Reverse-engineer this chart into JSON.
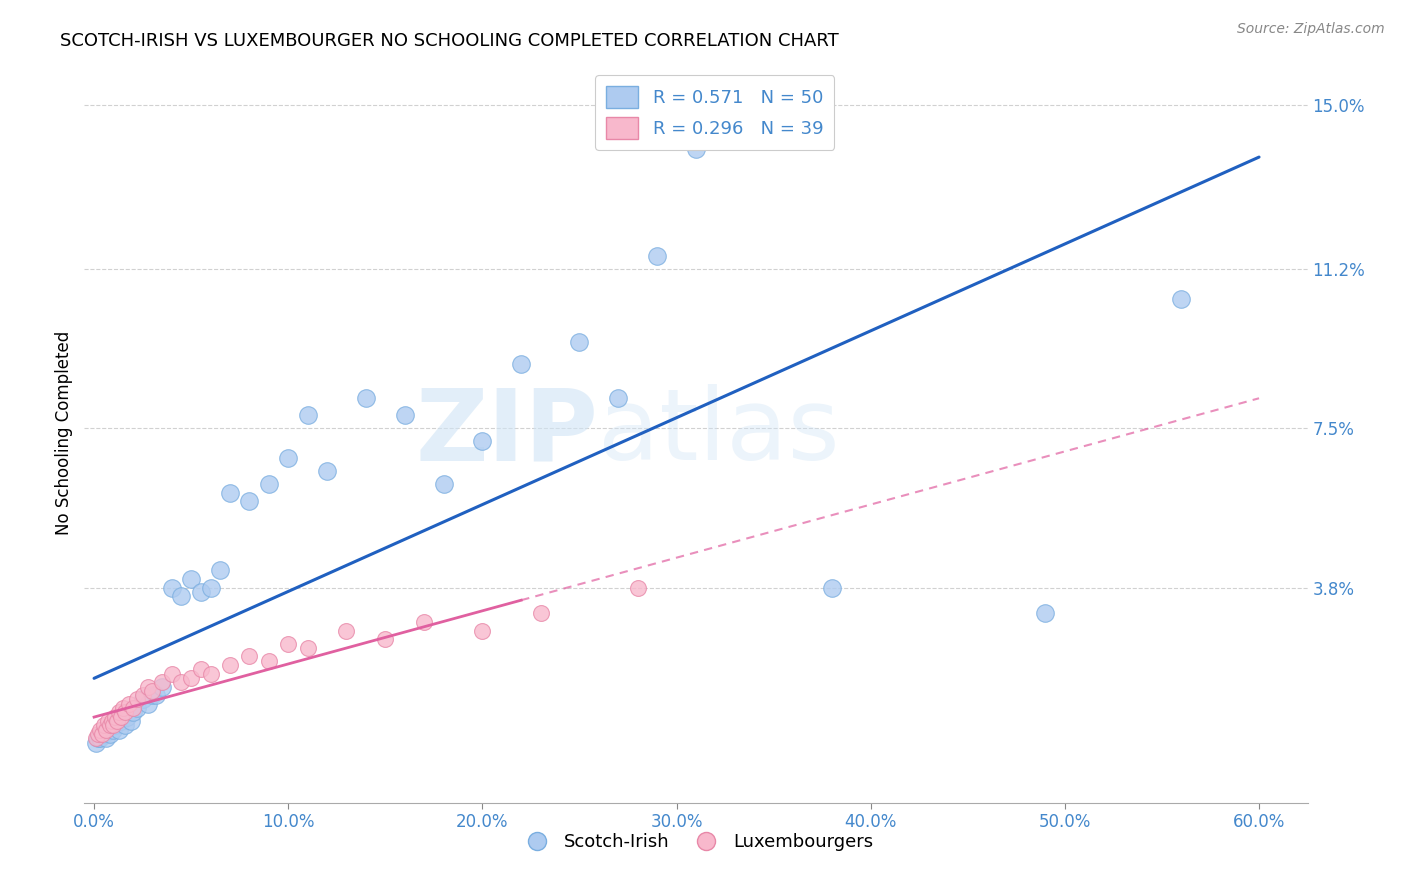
{
  "title": "SCOTCH-IRISH VS LUXEMBOURGER NO SCHOOLING COMPLETED CORRELATION CHART",
  "source": "Source: ZipAtlas.com",
  "xlabel_ticks": [
    "0.0%",
    "10.0%",
    "20.0%",
    "30.0%",
    "40.0%",
    "50.0%",
    "60.0%"
  ],
  "xlabel_vals": [
    0.0,
    0.1,
    0.2,
    0.3,
    0.4,
    0.5,
    0.6
  ],
  "ylabel_ticks": [
    "3.8%",
    "7.5%",
    "11.2%",
    "15.0%"
  ],
  "ylabel_vals": [
    0.038,
    0.075,
    0.112,
    0.15
  ],
  "ylabel_label": "No Schooling Completed",
  "xlim": [
    -0.005,
    0.625
  ],
  "ylim": [
    -0.012,
    0.16
  ],
  "legend_r1": "R = 0.571",
  "legend_n1": "N = 50",
  "legend_r2": "R = 0.296",
  "legend_n2": "N = 39",
  "scotch_irish_color": "#aecbf0",
  "scotch_irish_edge_color": "#7aaee0",
  "scotch_irish_line_color": "#2060c0",
  "luxembourger_color": "#f8b8cc",
  "luxembourger_edge_color": "#e888a8",
  "luxembourger_line_color": "#e060a0",
  "label_color": "#4488cc",
  "watermark_color": "#d0e4f5",
  "grid_color": "#cccccc",
  "background_color": "#ffffff",
  "scotch_irish_x": [
    0.001,
    0.002,
    0.003,
    0.004,
    0.005,
    0.006,
    0.007,
    0.008,
    0.009,
    0.01,
    0.011,
    0.012,
    0.013,
    0.014,
    0.015,
    0.016,
    0.017,
    0.018,
    0.019,
    0.02,
    0.022,
    0.025,
    0.028,
    0.03,
    0.032,
    0.035,
    0.04,
    0.045,
    0.05,
    0.055,
    0.06,
    0.065,
    0.07,
    0.08,
    0.09,
    0.1,
    0.11,
    0.12,
    0.14,
    0.16,
    0.18,
    0.2,
    0.22,
    0.25,
    0.27,
    0.29,
    0.31,
    0.38,
    0.49,
    0.56
  ],
  "scotch_irish_y": [
    0.002,
    0.003,
    0.003,
    0.004,
    0.004,
    0.003,
    0.005,
    0.004,
    0.006,
    0.005,
    0.006,
    0.007,
    0.005,
    0.007,
    0.008,
    0.006,
    0.008,
    0.009,
    0.007,
    0.009,
    0.01,
    0.012,
    0.011,
    0.013,
    0.013,
    0.015,
    0.038,
    0.036,
    0.04,
    0.037,
    0.038,
    0.042,
    0.06,
    0.058,
    0.062,
    0.068,
    0.078,
    0.065,
    0.082,
    0.078,
    0.062,
    0.072,
    0.09,
    0.095,
    0.082,
    0.115,
    0.14,
    0.038,
    0.032,
    0.105
  ],
  "luxembourger_x": [
    0.001,
    0.002,
    0.003,
    0.004,
    0.005,
    0.006,
    0.007,
    0.008,
    0.009,
    0.01,
    0.011,
    0.012,
    0.013,
    0.014,
    0.015,
    0.016,
    0.018,
    0.02,
    0.022,
    0.025,
    0.028,
    0.03,
    0.035,
    0.04,
    0.045,
    0.05,
    0.055,
    0.06,
    0.07,
    0.08,
    0.09,
    0.1,
    0.11,
    0.13,
    0.15,
    0.17,
    0.2,
    0.23,
    0.28
  ],
  "luxembourger_y": [
    0.003,
    0.004,
    0.005,
    0.004,
    0.006,
    0.005,
    0.007,
    0.006,
    0.007,
    0.006,
    0.008,
    0.007,
    0.009,
    0.008,
    0.01,
    0.009,
    0.011,
    0.01,
    0.012,
    0.013,
    0.015,
    0.014,
    0.016,
    0.018,
    0.016,
    0.017,
    0.019,
    0.018,
    0.02,
    0.022,
    0.021,
    0.025,
    0.024,
    0.028,
    0.026,
    0.03,
    0.028,
    0.032,
    0.038
  ]
}
